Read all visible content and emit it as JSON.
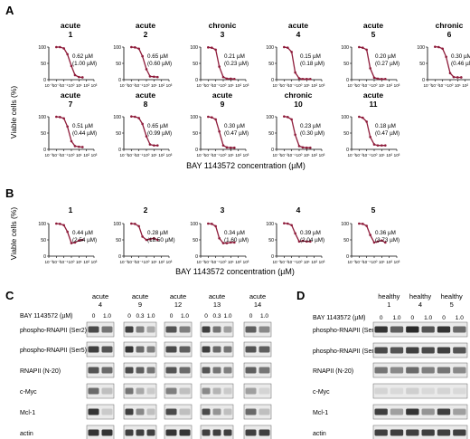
{
  "figure": {
    "panel_labels": {
      "A": "A",
      "B": "B",
      "C": "C",
      "D": "D"
    },
    "y_axis_label": "Viable cells (%)",
    "x_axis_label": "BAY 1143572 concentration (µM)",
    "y_ticks": [
      "100",
      "50",
      "0"
    ],
    "x_tick_labels": [
      "10⁻³",
      "10⁻²",
      "10⁻¹",
      "10⁰",
      "10¹",
      "10²",
      "10³"
    ],
    "panel_C": {
      "drug_label": "BAY 1143572 (µM)",
      "samples": [
        {
          "title": "acute\n4",
          "doses": [
            "0",
            "1.0"
          ]
        },
        {
          "title": "acute\n9",
          "doses": [
            "0",
            "0.3",
            "1.0"
          ]
        },
        {
          "title": "acute\n12",
          "doses": [
            "0",
            "1.0"
          ]
        },
        {
          "title": "acute\n13",
          "doses": [
            "0",
            "0.3",
            "1.0"
          ]
        },
        {
          "title": "acute\n14",
          "doses": [
            "0",
            "1.0"
          ]
        }
      ],
      "rows": [
        "phospho-RNAPII (Ser2)",
        "phospho-RNAPII (Ser5)",
        "RNAPII (N-20)",
        "c-Myc",
        "Mcl-1",
        "actin"
      ]
    },
    "panel_D": {
      "drug_label": "BAY 1143572 (µM)",
      "samples": [
        {
          "title": "healthy\n1",
          "doses": [
            "0",
            "1.0"
          ]
        },
        {
          "title": "healthy\n4",
          "doses": [
            "0",
            "1.0"
          ]
        },
        {
          "title": "healthy\n5",
          "doses": [
            "0",
            "1.0"
          ]
        }
      ],
      "rows": [
        "phospho-RNAPII (Ser2)",
        "phospho-RNAPII (Ser5)",
        "RNAPII (N-20)",
        "c-Myc",
        "Mcl-1",
        "actin"
      ]
    }
  },
  "chart_data": [
    {
      "type": "line",
      "panel": "A",
      "ylabel": "Viable cells (%)",
      "xlabel": "BAY 1143572 concentration (µM)",
      "xscale": "log",
      "xlim": [
        0.001,
        1000
      ],
      "ylim": [
        0,
        100
      ],
      "series": [
        {
          "title": "acute\n1",
          "ic_line1": "0.62 µM",
          "ic_line2": "(1.00 µM)",
          "x": [
            0.01,
            0.03,
            0.1,
            0.3,
            1,
            3,
            10,
            30
          ],
          "y": [
            100,
            100,
            96,
            78,
            42,
            14,
            8,
            7
          ]
        },
        {
          "title": "acute\n2",
          "ic_line1": "0.65 µM",
          "ic_line2": "(0.60 µM)",
          "x": [
            0.01,
            0.03,
            0.1,
            0.3,
            1,
            3,
            10,
            30
          ],
          "y": [
            100,
            99,
            95,
            72,
            32,
            10,
            9,
            8
          ]
        },
        {
          "title": "chronic\n3",
          "ic_line1": "0.21 µM",
          "ic_line2": "(0.23 µM)",
          "x": [
            0.01,
            0.03,
            0.1,
            0.3,
            1,
            3,
            10,
            30
          ],
          "y": [
            99,
            98,
            92,
            40,
            8,
            3,
            3,
            2
          ]
        },
        {
          "title": "acute\n4",
          "ic_line1": "0.15 µM",
          "ic_line2": "(0.18 µM)",
          "x": [
            0.01,
            0.03,
            0.1,
            0.3,
            1,
            3,
            10,
            30
          ],
          "y": [
            100,
            98,
            85,
            22,
            4,
            2,
            2,
            2
          ]
        },
        {
          "title": "acute\n5",
          "ic_line1": "0.20 µM",
          "ic_line2": "(0.27 µM)",
          "x": [
            0.01,
            0.03,
            0.1,
            0.3,
            1,
            3,
            10,
            30
          ],
          "y": [
            100,
            98,
            92,
            35,
            6,
            3,
            2,
            2
          ]
        },
        {
          "title": "chronic\n6",
          "ic_line1": "0.30 µM",
          "ic_line2": "(0.46 µM)",
          "x": [
            0.01,
            0.03,
            0.1,
            0.3,
            1,
            3,
            10,
            30
          ],
          "y": [
            101,
            100,
            95,
            70,
            20,
            8,
            7,
            7
          ]
        },
        {
          "title": "acute\n7",
          "ic_line1": "0.51 µM",
          "ic_line2": "(0.44 µM)",
          "x": [
            0.01,
            0.03,
            0.1,
            0.3,
            1,
            3,
            10,
            30
          ],
          "y": [
            100,
            99,
            95,
            70,
            25,
            10,
            8,
            7
          ]
        },
        {
          "title": "acute\n8",
          "ic_line1": "0.65 µM",
          "ic_line2": "(0.99 µM)",
          "x": [
            0.01,
            0.03,
            0.1,
            0.3,
            1,
            3,
            10,
            30
          ],
          "y": [
            101,
            100,
            96,
            78,
            40,
            15,
            12,
            12
          ]
        },
        {
          "title": "acute\n9",
          "ic_line1": "0.30 µM",
          "ic_line2": "(0.47 µM)",
          "x": [
            0.01,
            0.03,
            0.1,
            0.3,
            1,
            3,
            10,
            30
          ],
          "y": [
            100,
            98,
            92,
            55,
            12,
            6,
            5,
            5
          ]
        },
        {
          "title": "chronic\n10",
          "ic_line1": "0.23 µM",
          "ic_line2": "(0.30 µM)",
          "x": [
            0.01,
            0.03,
            0.1,
            0.3,
            1,
            3,
            10,
            30
          ],
          "y": [
            101,
            99,
            92,
            45,
            10,
            6,
            5,
            5
          ]
        },
        {
          "title": "acute\n11",
          "ic_line1": "0.18 µM",
          "ic_line2": "(0.47 µM)",
          "x": [
            0.01,
            0.03,
            0.1,
            0.3,
            1,
            3,
            10,
            30
          ],
          "y": [
            100,
            97,
            85,
            38,
            15,
            12,
            12,
            12
          ]
        }
      ]
    },
    {
      "type": "line",
      "panel": "B",
      "ylabel": "Viable cells (%)",
      "xlabel": "BAY 1143572 concentration (µM)",
      "xscale": "log",
      "xlim": [
        0.001,
        1000
      ],
      "ylim": [
        0,
        100
      ],
      "series": [
        {
          "title": "1",
          "ic_line1": "0.44 µM",
          "ic_line2": "(2.54 µM)",
          "x": [
            0.01,
            0.03,
            0.1,
            0.3,
            1,
            3,
            10,
            30
          ],
          "y": [
            100,
            99,
            95,
            75,
            40,
            42,
            48,
            50
          ]
        },
        {
          "title": "2",
          "ic_line1": "0.28 µM",
          "ic_line2": "(18.50 µM)",
          "x": [
            0.01,
            0.03,
            0.1,
            0.3,
            1,
            3,
            10,
            30
          ],
          "y": [
            100,
            99,
            92,
            60,
            50,
            52,
            55,
            50
          ]
        },
        {
          "title": "3",
          "ic_line1": "0.34 µM",
          "ic_line2": "(1.60 µM)",
          "x": [
            0.01,
            0.03,
            0.1,
            0.3,
            1,
            3,
            10,
            30
          ],
          "y": [
            100,
            99,
            92,
            55,
            40,
            40,
            42,
            42
          ]
        },
        {
          "title": "4",
          "ic_line1": "0.39 µM",
          "ic_line2": "(2.04 µM)",
          "x": [
            0.01,
            0.03,
            0.1,
            0.3,
            1,
            3,
            10,
            30
          ],
          "y": [
            101,
            100,
            95,
            70,
            45,
            47,
            45,
            45
          ]
        },
        {
          "title": "5",
          "ic_line1": "0.36 µM",
          "ic_line2": "(3.73 µM)",
          "x": [
            0.01,
            0.03,
            0.1,
            0.3,
            1,
            3,
            10,
            30
          ],
          "y": [
            100,
            99,
            93,
            65,
            42,
            45,
            48,
            42
          ]
        }
      ]
    }
  ]
}
